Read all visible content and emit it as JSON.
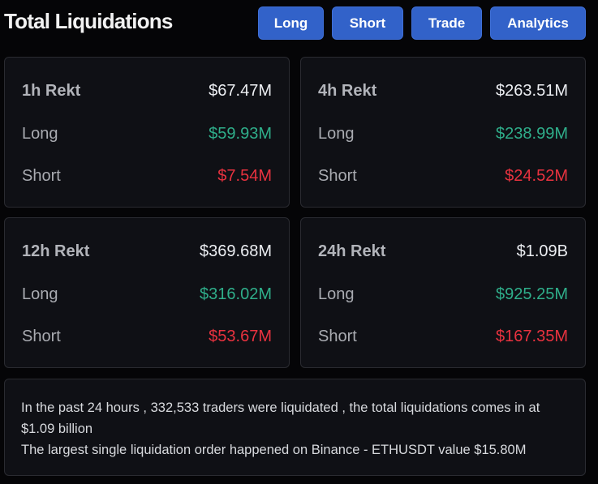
{
  "header": {
    "title": "Total Liquidations",
    "buttons": [
      {
        "label": "Long"
      },
      {
        "label": "Short"
      },
      {
        "label": "Trade"
      },
      {
        "label": "Analytics"
      }
    ]
  },
  "colors": {
    "button_bg": "#3262c9",
    "long": "#2fae8a",
    "short": "#e8323f",
    "card_bg": "#0f1015",
    "page_bg": "#050507"
  },
  "cards": [
    {
      "period_label": "1h Rekt",
      "total": "$67.47M",
      "long_label": "Long",
      "long": "$59.93M",
      "short_label": "Short",
      "short": "$7.54M"
    },
    {
      "period_label": "4h Rekt",
      "total": "$263.51M",
      "long_label": "Long",
      "long": "$238.99M",
      "short_label": "Short",
      "short": "$24.52M"
    },
    {
      "period_label": "12h Rekt",
      "total": "$369.68M",
      "long_label": "Long",
      "long": "$316.02M",
      "short_label": "Short",
      "short": "$53.67M"
    },
    {
      "period_label": "24h Rekt",
      "total": "$1.09B",
      "long_label": "Long",
      "long": "$925.25M",
      "short_label": "Short",
      "short": "$167.35M"
    }
  ],
  "summary": {
    "line1": "In the past 24 hours , 332,533 traders were liquidated , the total liquidations comes in at $1.09 billion",
    "line2": "The largest single liquidation order happened on Binance - ETHUSDT value $15.80M"
  }
}
